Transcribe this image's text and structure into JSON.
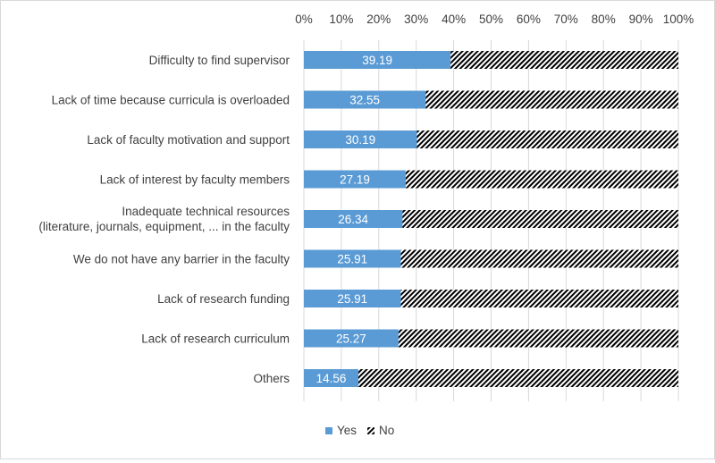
{
  "chart_data": {
    "type": "bar",
    "orientation": "horizontal",
    "stacked": "100%",
    "categories": [
      "Difficulty to find supervisor",
      "Lack of time because curricula is overloaded",
      "Lack of faculty motivation and support",
      "Lack of interest by faculty members",
      "Inadequate technical resources (literature, journals, equipment, ... in the faculty",
      "We do not have any barrier in the faculty",
      "Lack of research funding",
      "Lack of research curriculum",
      "Others"
    ],
    "series": [
      {
        "name": "Yes",
        "values": [
          39.19,
          32.55,
          30.19,
          27.19,
          26.34,
          25.91,
          25.91,
          25.27,
          14.56
        ],
        "color": "#5b9bd5",
        "pattern": "solid"
      },
      {
        "name": "No",
        "values": [
          60.81,
          67.45,
          69.81,
          72.81,
          73.66,
          74.09,
          74.09,
          74.73,
          85.44
        ],
        "color": "#000000",
        "pattern": "diagonal-hatch"
      }
    ],
    "data_labels": [
      "39.19",
      "32.55",
      "30.19",
      "27.19",
      "26.34",
      "25.91",
      "25.91",
      "25.27",
      "14.56"
    ],
    "xaxis": {
      "position": "top",
      "range": [
        0,
        100
      ],
      "ticks": [
        "0%",
        "10%",
        "20%",
        "30%",
        "40%",
        "50%",
        "60%",
        "70%",
        "80%",
        "90%",
        "100%"
      ]
    },
    "gridlines": true,
    "legend": {
      "position": "bottom",
      "entries": [
        "Yes",
        "No"
      ]
    },
    "title": "",
    "xlabel": "",
    "ylabel": ""
  }
}
